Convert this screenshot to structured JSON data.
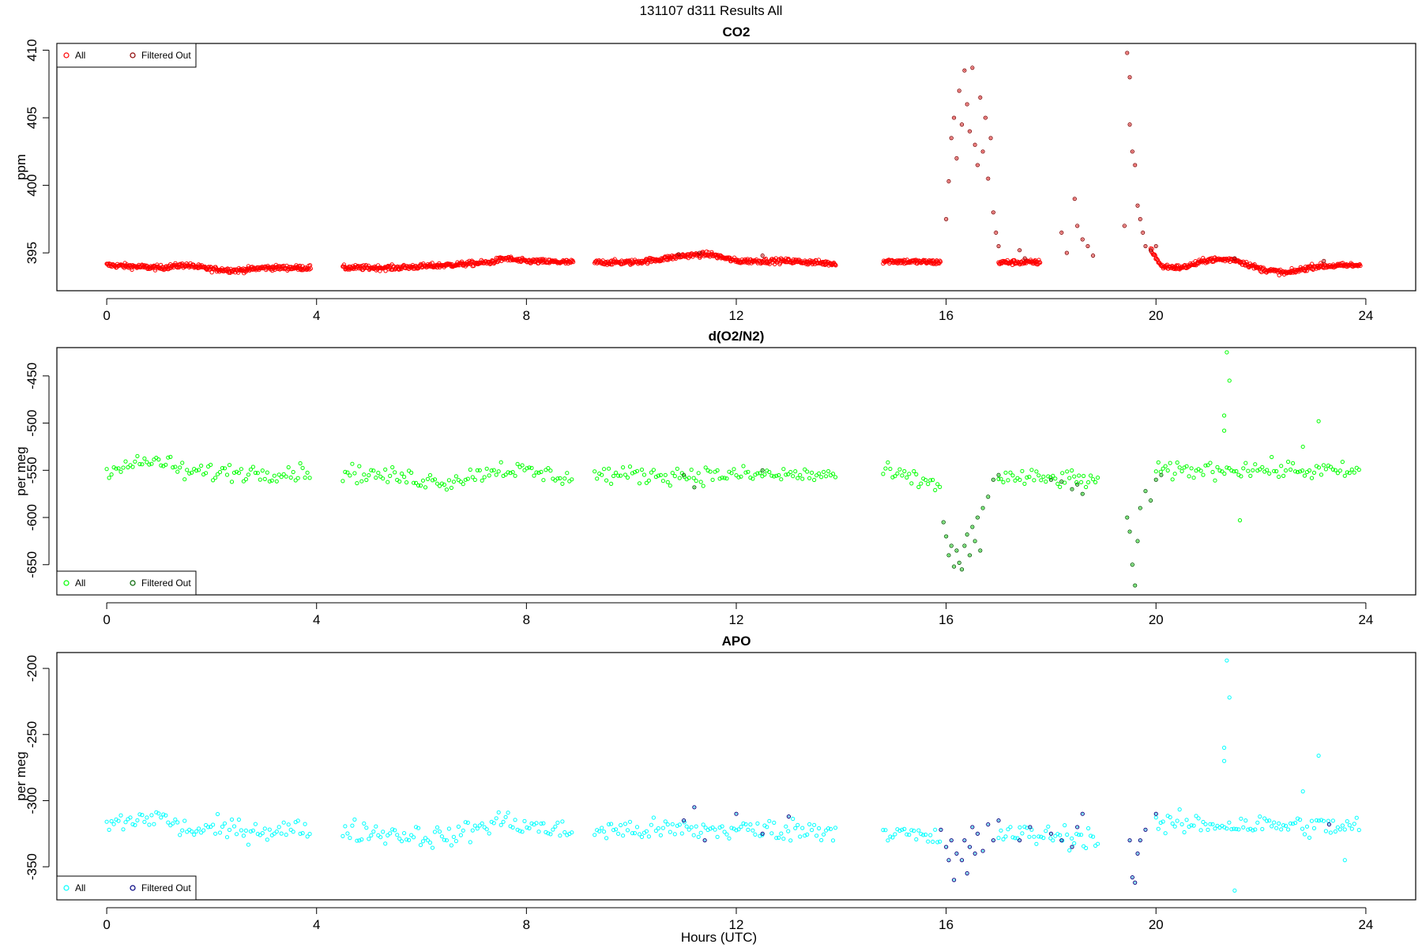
{
  "figure": {
    "title": "131107   d311   Results All",
    "xlabel": "Hours (UTC)"
  },
  "chart_data": [
    {
      "type": "scatter",
      "title": "CO2",
      "xlabel": "",
      "ylabel": "ppm",
      "xlim": [
        -0.95,
        24.95
      ],
      "ylim": [
        392.2,
        410.5
      ],
      "xticks": [
        0,
        4,
        8,
        12,
        16,
        20,
        24
      ],
      "yticks": [
        395,
        400,
        405,
        410
      ],
      "legend": {
        "position": "top-left",
        "entries": [
          "All",
          "Filtered Out"
        ]
      },
      "colors": {
        "all": "#ff0000",
        "filtered": "#8b0000"
      },
      "series": [
        {
          "name": "All",
          "trend": [
            [
              0.0,
              394.1
            ],
            [
              1.0,
              393.9
            ],
            [
              1.5,
              394.1
            ],
            [
              2.0,
              393.8
            ],
            [
              2.5,
              393.7
            ],
            [
              3.0,
              393.9
            ],
            [
              3.9,
              393.9
            ],
            [
              4.5,
              393.9
            ],
            [
              5.5,
              393.9
            ],
            [
              6.5,
              394.1
            ],
            [
              7.3,
              394.3
            ],
            [
              7.6,
              394.6
            ],
            [
              7.9,
              394.4
            ],
            [
              8.9,
              394.3
            ],
            [
              9.3,
              394.3
            ],
            [
              10.0,
              394.3
            ],
            [
              10.5,
              394.5
            ],
            [
              11.0,
              394.8
            ],
            [
              11.5,
              394.9
            ],
            [
              12.0,
              394.4
            ],
            [
              13.0,
              394.4
            ],
            [
              13.9,
              394.2
            ],
            [
              14.8,
              394.4
            ],
            [
              15.9,
              394.3
            ],
            [
              17.0,
              394.3
            ],
            [
              17.8,
              394.3
            ],
            [
              19.9,
              395.3
            ],
            [
              20.1,
              394.0
            ],
            [
              20.5,
              393.9
            ],
            [
              21.0,
              394.5
            ],
            [
              21.5,
              394.5
            ],
            [
              22.0,
              393.8
            ],
            [
              22.5,
              393.5
            ],
            [
              23.0,
              394.0
            ],
            [
              23.9,
              394.1
            ]
          ],
          "segments": [
            [
              0.0,
              3.9
            ],
            [
              4.5,
              8.9
            ],
            [
              9.3,
              13.9
            ],
            [
              14.8,
              15.9
            ],
            [
              17.0,
              17.8
            ],
            [
              19.9,
              23.9
            ]
          ],
          "noise": 0.18
        },
        {
          "name": "Filtered Out",
          "points": [
            [
              16.0,
              397.5
            ],
            [
              16.05,
              400.3
            ],
            [
              16.1,
              403.5
            ],
            [
              16.15,
              405.0
            ],
            [
              16.2,
              402.0
            ],
            [
              16.25,
              407.0
            ],
            [
              16.3,
              404.5
            ],
            [
              16.35,
              408.5
            ],
            [
              16.4,
              406.0
            ],
            [
              16.45,
              404.0
            ],
            [
              16.5,
              408.7
            ],
            [
              16.55,
              403.0
            ],
            [
              16.6,
              401.5
            ],
            [
              16.65,
              406.5
            ],
            [
              16.7,
              402.5
            ],
            [
              16.75,
              405.0
            ],
            [
              16.8,
              400.5
            ],
            [
              16.85,
              403.5
            ],
            [
              16.9,
              398.0
            ],
            [
              16.95,
              396.5
            ],
            [
              17.0,
              395.5
            ],
            [
              17.4,
              395.2
            ],
            [
              17.5,
              394.6
            ],
            [
              18.2,
              396.5
            ],
            [
              18.3,
              395.0
            ],
            [
              18.45,
              399.0
            ],
            [
              18.5,
              397.0
            ],
            [
              18.6,
              396.0
            ],
            [
              18.7,
              395.5
            ],
            [
              18.8,
              394.8
            ],
            [
              19.4,
              397.0
            ],
            [
              19.45,
              409.8
            ],
            [
              19.5,
              408.0
            ],
            [
              19.5,
              404.5
            ],
            [
              19.55,
              402.5
            ],
            [
              19.6,
              401.5
            ],
            [
              19.65,
              398.5
            ],
            [
              19.7,
              397.5
            ],
            [
              19.75,
              396.5
            ],
            [
              19.8,
              395.5
            ],
            [
              19.9,
              395.2
            ],
            [
              20.0,
              395.5
            ],
            [
              10.9,
              394.9
            ],
            [
              11.3,
              395.0
            ],
            [
              12.5,
              394.8
            ],
            [
              21.5,
              394.6
            ],
            [
              23.2,
              394.4
            ]
          ]
        }
      ]
    },
    {
      "type": "scatter",
      "title": "d(O2/N2)",
      "xlabel": "",
      "ylabel": "per meg",
      "xlim": [
        -0.95,
        24.95
      ],
      "ylim": [
        -682,
        -420
      ],
      "xticks": [
        0,
        4,
        8,
        12,
        16,
        20,
        24
      ],
      "yticks": [
        -450,
        -500,
        -550,
        -600,
        -650
      ],
      "legend": {
        "position": "bottom-left",
        "entries": [
          "All",
          "Filtered Out"
        ]
      },
      "colors": {
        "all": "#00ff00",
        "filtered": "#006400"
      },
      "series": [
        {
          "name": "All",
          "trend": [
            [
              0.0,
              -548
            ],
            [
              1.0,
              -540
            ],
            [
              1.5,
              -552
            ],
            [
              3.9,
              -552
            ],
            [
              4.5,
              -552
            ],
            [
              6.5,
              -562
            ],
            [
              7.5,
              -548
            ],
            [
              8.9,
              -558
            ],
            [
              9.3,
              -555
            ],
            [
              13.9,
              -555
            ],
            [
              14.8,
              -552
            ],
            [
              15.8,
              -565
            ],
            [
              17.0,
              -558
            ],
            [
              18.9,
              -560
            ],
            [
              20.0,
              -552
            ],
            [
              21.5,
              -548
            ],
            [
              23.9,
              -552
            ]
          ],
          "segments": [
            [
              0.0,
              3.9
            ],
            [
              4.5,
              8.9
            ],
            [
              9.3,
              13.9
            ],
            [
              14.8,
              15.9
            ],
            [
              17.0,
              18.9
            ],
            [
              20.0,
              23.9
            ]
          ],
          "noise": 9,
          "extra": [
            [
              21.35,
              -425
            ],
            [
              21.4,
              -455
            ],
            [
              21.3,
              -492
            ],
            [
              21.3,
              -508
            ],
            [
              23.1,
              -498
            ],
            [
              21.6,
              -603
            ],
            [
              22.8,
              -525
            ]
          ]
        },
        {
          "name": "Filtered Out",
          "points": [
            [
              15.95,
              -605
            ],
            [
              16.0,
              -620
            ],
            [
              16.05,
              -640
            ],
            [
              16.1,
              -630
            ],
            [
              16.15,
              -652
            ],
            [
              16.2,
              -635
            ],
            [
              16.25,
              -648
            ],
            [
              16.3,
              -655
            ],
            [
              16.35,
              -630
            ],
            [
              16.4,
              -618
            ],
            [
              16.45,
              -640
            ],
            [
              16.5,
              -610
            ],
            [
              16.55,
              -625
            ],
            [
              16.6,
              -600
            ],
            [
              16.65,
              -635
            ],
            [
              16.7,
              -590
            ],
            [
              16.8,
              -578
            ],
            [
              16.9,
              -560
            ],
            [
              17.0,
              -555
            ],
            [
              18.0,
              -560
            ],
            [
              18.2,
              -562
            ],
            [
              18.4,
              -570
            ],
            [
              18.5,
              -565
            ],
            [
              18.6,
              -575
            ],
            [
              19.45,
              -600
            ],
            [
              19.5,
              -615
            ],
            [
              19.55,
              -650
            ],
            [
              19.6,
              -672
            ],
            [
              19.65,
              -625
            ],
            [
              19.7,
              -590
            ],
            [
              19.8,
              -572
            ],
            [
              19.9,
              -582
            ],
            [
              20.0,
              -560
            ],
            [
              20.1,
              -555
            ],
            [
              11.2,
              -568
            ],
            [
              11.0,
              -555
            ],
            [
              12.5,
              -550
            ]
          ]
        }
      ]
    },
    {
      "type": "scatter",
      "title": "APO",
      "xlabel": "Hours (UTC)",
      "ylabel": "per meg",
      "xlim": [
        -0.95,
        24.95
      ],
      "ylim": [
        -375,
        -188
      ],
      "xticks": [
        0,
        4,
        8,
        12,
        16,
        20,
        24
      ],
      "yticks": [
        -200,
        -250,
        -300,
        -350
      ],
      "legend": {
        "position": "bottom-left",
        "entries": [
          "All",
          "Filtered Out"
        ]
      },
      "colors": {
        "all": "#00ffff",
        "filtered": "#000080"
      },
      "series": [
        {
          "name": "All",
          "trend": [
            [
              0.0,
              -318
            ],
            [
              1.0,
              -312
            ],
            [
              1.5,
              -322
            ],
            [
              3.9,
              -322
            ],
            [
              4.5,
              -322
            ],
            [
              6.5,
              -328
            ],
            [
              7.5,
              -315
            ],
            [
              8.9,
              -325
            ],
            [
              9.3,
              -322
            ],
            [
              13.9,
              -322
            ],
            [
              14.8,
              -322
            ],
            [
              15.8,
              -330
            ],
            [
              17.0,
              -325
            ],
            [
              18.9,
              -328
            ],
            [
              20.0,
              -318
            ],
            [
              21.5,
              -318
            ],
            [
              23.9,
              -320
            ]
          ],
          "segments": [
            [
              0.0,
              3.9
            ],
            [
              4.5,
              8.9
            ],
            [
              9.3,
              13.9
            ],
            [
              14.8,
              15.9
            ],
            [
              17.0,
              18.9
            ],
            [
              20.0,
              23.9
            ]
          ],
          "noise": 8,
          "extra": [
            [
              21.35,
              -194
            ],
            [
              21.4,
              -222
            ],
            [
              21.3,
              -260
            ],
            [
              21.3,
              -270
            ],
            [
              23.1,
              -266
            ],
            [
              21.5,
              -368
            ],
            [
              22.8,
              -293
            ],
            [
              23.6,
              -345
            ]
          ]
        },
        {
          "name": "Filtered Out",
          "points": [
            [
              15.9,
              -322
            ],
            [
              16.0,
              -335
            ],
            [
              16.05,
              -345
            ],
            [
              16.1,
              -330
            ],
            [
              16.15,
              -360
            ],
            [
              16.2,
              -340
            ],
            [
              16.3,
              -345
            ],
            [
              16.35,
              -330
            ],
            [
              16.4,
              -355
            ],
            [
              16.45,
              -335
            ],
            [
              16.5,
              -320
            ],
            [
              16.55,
              -340
            ],
            [
              16.6,
              -325
            ],
            [
              16.7,
              -338
            ],
            [
              16.8,
              -318
            ],
            [
              16.9,
              -330
            ],
            [
              17.0,
              -315
            ],
            [
              17.4,
              -330
            ],
            [
              17.6,
              -320
            ],
            [
              18.0,
              -325
            ],
            [
              18.2,
              -330
            ],
            [
              18.4,
              -335
            ],
            [
              18.5,
              -320
            ],
            [
              18.6,
              -310
            ],
            [
              19.5,
              -330
            ],
            [
              19.55,
              -358
            ],
            [
              19.6,
              -362
            ],
            [
              19.65,
              -340
            ],
            [
              19.7,
              -330
            ],
            [
              19.8,
              -322
            ],
            [
              20.0,
              -310
            ],
            [
              11.0,
              -315
            ],
            [
              11.2,
              -305
            ],
            [
              11.4,
              -330
            ],
            [
              12.0,
              -310
            ],
            [
              12.5,
              -325
            ],
            [
              13.0,
              -312
            ],
            [
              23.3,
              -318
            ]
          ]
        }
      ]
    }
  ]
}
